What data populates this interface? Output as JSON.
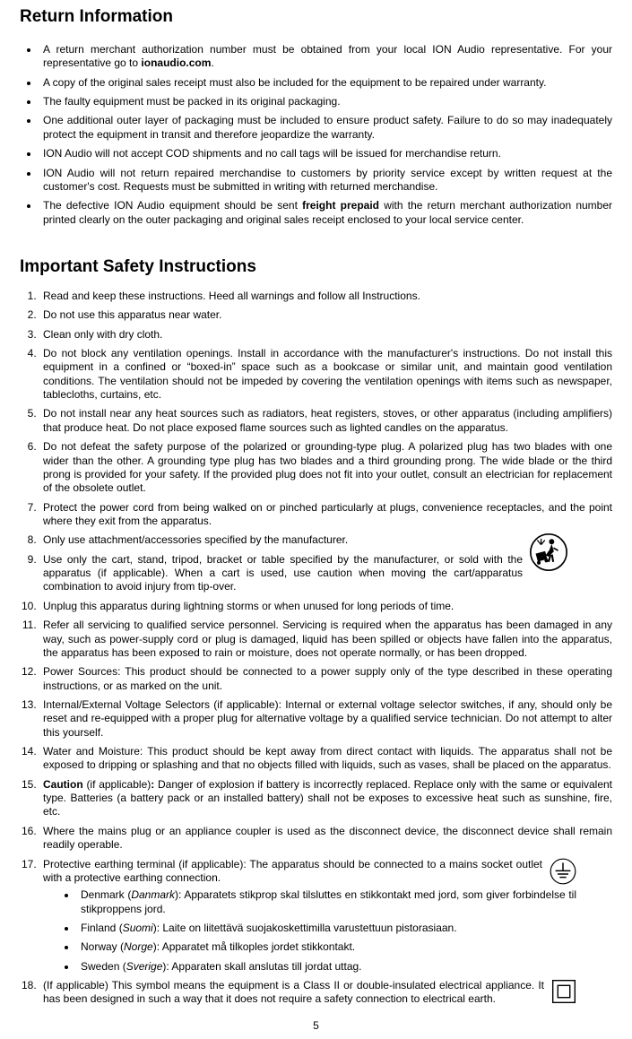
{
  "doc": {
    "heading1": "Return Information",
    "heading2": "Important Safety Instructions",
    "page_number": "5",
    "return_bullets": [
      {
        "html": "A return merchant authorization number must be obtained from your local ION Audio representative. For your representative go to <span class=\"bold\">ionaudio.com</span>."
      },
      {
        "html": "A copy of the original sales receipt must also be included for the equipment to be repaired under warranty."
      },
      {
        "html": "The faulty equipment must be packed in its original packaging."
      },
      {
        "html": "One additional outer layer of packaging must be included to ensure product safety. Failure to do so may inadequately protect the equipment in transit and therefore jeopardize the warranty."
      },
      {
        "html": "ION Audio will not accept COD shipments and no call tags will be issued for merchandise return."
      },
      {
        "html": "ION Audio will not return repaired merchandise to customers by priority service except by written request at the customer's cost. Requests must be submitted in writing with returned merchandise."
      },
      {
        "html": "The defective ION Audio equipment should be sent <span class=\"bold\">freight prepaid</span> with the return merchant authorization number printed clearly on the outer packaging and original sales receipt enclosed to your local service center."
      }
    ],
    "safety_items": [
      {
        "html": "Read and keep these instructions. Heed all warnings and follow all Instructions."
      },
      {
        "html": "Do not use this apparatus near water."
      },
      {
        "html": "Clean only with dry cloth."
      },
      {
        "html": "Do not block any ventilation openings. Install in accordance with the manufacturer's instructions. Do not install this equipment in a confined or “boxed-in” space such as a bookcase or similar unit, and maintain good ventilation conditions. The ventilation should not be impeded by covering the ventilation openings with items such as newspaper, tablecloths, curtains, etc."
      },
      {
        "html": "Do not install near any heat sources such as radiators, heat registers, stoves, or other apparatus (including amplifiers) that produce heat. Do not place exposed flame sources such as lighted candles on the apparatus."
      },
      {
        "html": "Do not defeat the safety purpose of the polarized or grounding-type plug. A polarized plug has two blades with one wider than the other. A grounding type plug has two blades and a third grounding prong. The wide blade or the third prong is provided for your safety. If the provided plug does not fit into your outlet, consult an electrician for replacement of the obsolete outlet."
      },
      {
        "html": "Protect the power cord from being walked on or pinched particularly at plugs, convenience receptacles, and the point where they exit from the apparatus."
      },
      {
        "html": "Only use attachment/accessories specified by the manufacturer.",
        "icon": "cart",
        "pad": "li-pad-right-50"
      },
      {
        "html": "Use only the cart, stand, tripod, bracket or table specified by the manufacturer, or sold with the apparatus (if applicable). When a cart is used, use caution when moving the cart/apparatus combination to avoid injury from tip-over.",
        "pad": "li-pad-right-50"
      },
      {
        "html": "Unplug this apparatus during lightning storms or when unused for long periods of time."
      },
      {
        "html": "Refer all servicing to qualified service personnel. Servicing is required when the apparatus has been damaged in any way, such as power-supply cord or plug is damaged, liquid has been spilled or objects have fallen into the apparatus, the apparatus has been exposed to rain or moisture, does not operate normally, or has been dropped."
      },
      {
        "html": "Power Sources: This product should be connected to a power supply only of the type described in these operating instructions, or as marked on the unit."
      },
      {
        "html": "Internal/External Voltage Selectors (if applicable): Internal or external voltage selector switches, if any, should only be reset and re-equipped with a proper plug for alternative voltage by a qualified service technician. Do not attempt to alter this yourself."
      },
      {
        "html": "Water and Moisture: This product should be kept away from direct contact with liquids. The apparatus shall not be exposed to dripping or splashing and that no objects filled with liquids, such as vases, shall be placed on the apparatus."
      },
      {
        "html": "<span class=\"bold\">Caution</span> (if applicable)<span class=\"bold\">:</span> Danger of explosion if battery is incorrectly replaced. Replace only with the same or equivalent type. Batteries (a battery pack or an installed battery) shall not be exposes to excessive heat such as sunshine, fire, etc."
      },
      {
        "html": "Where the mains plug or an appliance coupler is used as the disconnect device, the disconnect device shall remain readily operable."
      },
      {
        "html": "Protective earthing terminal (if applicable): The apparatus should be connected to a mains socket outlet with a protective earthing connection.",
        "icon": "ground",
        "pad": "li-pad-right-40",
        "sub": [
          {
            "html": "Denmark (<span class=\"italic\">Danmark</span>): Apparatets stikprop skal tilsluttes en stikkontakt med jord, som giver forbindelse til stikproppens jord."
          },
          {
            "html": "Finland (<span class=\"italic\">Suomi</span>): Laite on liitettävä suojakoskettimilla varustettuun pistorasiaan."
          },
          {
            "html": "Norway (<span class=\"italic\">Norge</span>): Apparatet må tilkoples jordet stikkontakt."
          },
          {
            "html": "Sweden (<span class=\"italic\">Sverige</span>): Apparaten skall anslutas till jordat uttag."
          }
        ]
      },
      {
        "html": "(If applicable) This symbol means the equipment is a Class II or double-insulated electrical appliance. It has been designed in such a way that it does not require a safety connection to electrical earth.",
        "icon": "class2",
        "pad": "li-pad-right-40"
      }
    ],
    "icons": {
      "cart": {
        "size": 42
      },
      "ground": {
        "size": 30
      },
      "class2": {
        "size": 28
      }
    }
  }
}
